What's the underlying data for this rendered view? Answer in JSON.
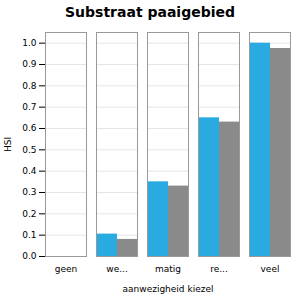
{
  "chart_data": {
    "type": "bar",
    "title": "Substraat paaigebied",
    "xlabel": "aanwezigheid kiezel",
    "ylabel": "HSI",
    "categories": [
      "geen",
      "we...",
      "matig",
      "re...",
      "veel"
    ],
    "series": [
      {
        "color": "#29aae1",
        "values": [
          0.0,
          0.105,
          0.35,
          0.65,
          1.0
        ]
      },
      {
        "color": "#8a8a8a",
        "values": [
          0.0,
          0.08,
          0.33,
          0.63,
          0.975
        ]
      }
    ],
    "ylim": [
      0.0,
      1.05
    ],
    "yticks": [
      {
        "value": 0.0,
        "label": "0.0"
      },
      0.1,
      0.2,
      0.3,
      0.4,
      0.5,
      0.6,
      0.7,
      0.8,
      0.9,
      {
        "value": 1.0,
        "label": "1.0"
      }
    ],
    "grid": true
  }
}
